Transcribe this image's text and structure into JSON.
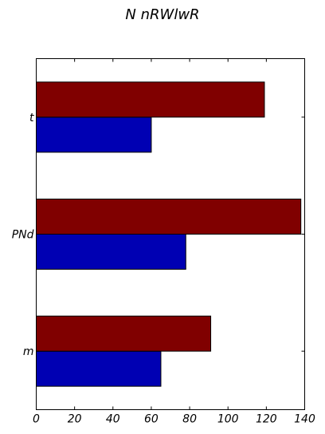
{
  "chart_data": {
    "type": "bar",
    "orientation": "horizontal",
    "title": "N nRWlwR",
    "categories": [
      "m",
      "PNd",
      "t"
    ],
    "series": [
      {
        "values": [
          65,
          78,
          60
        ],
        "color": "#0000b3"
      },
      {
        "values": [
          91,
          138,
          119
        ],
        "color": "#800000"
      }
    ],
    "xlim": [
      0,
      140
    ],
    "xticks": [
      0,
      20,
      40,
      60,
      80,
      100,
      120,
      140
    ],
    "grid": false
  }
}
